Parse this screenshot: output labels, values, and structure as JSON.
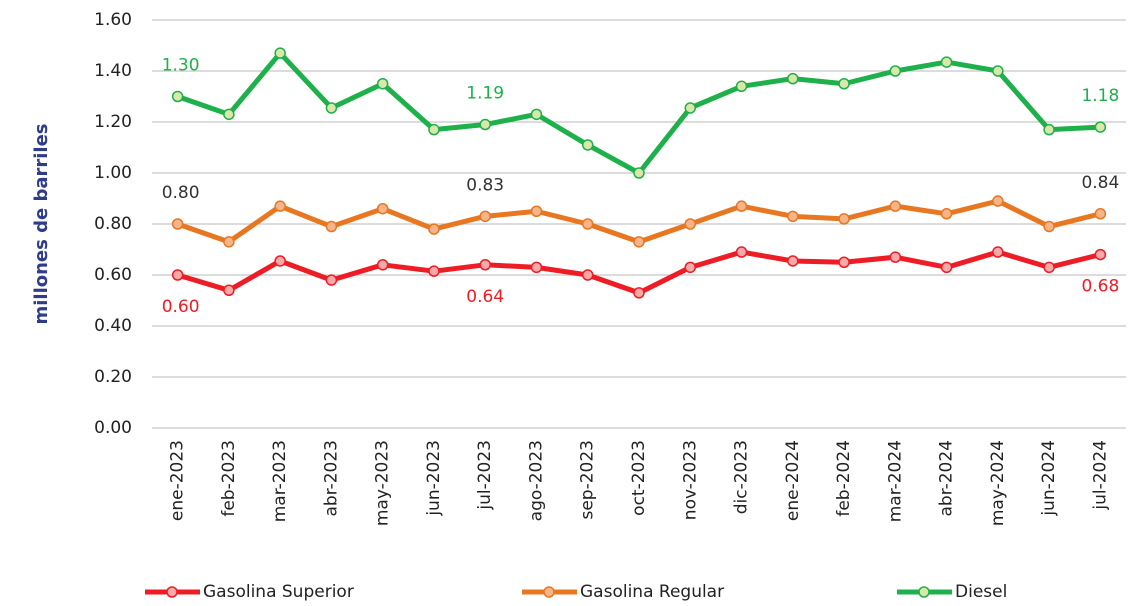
{
  "chart_data": {
    "type": "line",
    "y_label": "millones de barriles",
    "categories": [
      "ene-2023",
      "feb-2023",
      "mar-2023",
      "abr-2023",
      "may-2023",
      "jun-2023",
      "jul-2023",
      "ago-2023",
      "sep-2023",
      "oct-2023",
      "nov-2023",
      "dic-2023",
      "ene-2024",
      "feb-2024",
      "mar-2024",
      "abr-2024",
      "may-2024",
      "jun-2024",
      "jul-2024"
    ],
    "series": [
      {
        "name": "Gasolina Superior",
        "color": "#ee1c25",
        "marker_color": "#f7a8a8",
        "label_color": "#ee1c25",
        "values": [
          0.6,
          0.54,
          0.655,
          0.58,
          0.64,
          0.615,
          0.64,
          0.63,
          0.6,
          0.53,
          0.63,
          0.69,
          0.655,
          0.65,
          0.67,
          0.63,
          0.69,
          0.63,
          0.68
        ],
        "value_labels": [
          "0.60",
          null,
          null,
          null,
          null,
          null,
          "0.64",
          null,
          null,
          null,
          null,
          null,
          null,
          null,
          null,
          null,
          null,
          null,
          "0.68"
        ]
      },
      {
        "name": "Gasolina Regular",
        "color": "#e87722",
        "marker_color": "#f6b48a",
        "label_color": "#333333",
        "values": [
          0.8,
          0.73,
          0.87,
          0.79,
          0.86,
          0.78,
          0.83,
          0.85,
          0.8,
          0.73,
          0.8,
          0.87,
          0.83,
          0.82,
          0.87,
          0.84,
          0.89,
          0.79,
          0.84
        ],
        "value_labels": [
          "0.80",
          null,
          null,
          null,
          null,
          null,
          "0.83",
          null,
          null,
          null,
          null,
          null,
          null,
          null,
          null,
          null,
          null,
          null,
          "0.84"
        ]
      },
      {
        "name": "Diesel",
        "color": "#1db04b",
        "marker_color": "#d9e8a8",
        "label_color": "#1db04b",
        "values": [
          1.3,
          1.23,
          1.47,
          1.255,
          1.35,
          1.17,
          1.19,
          1.23,
          1.11,
          1.0,
          1.255,
          1.34,
          1.37,
          1.35,
          1.4,
          1.435,
          1.4,
          1.17,
          1.18
        ],
        "value_labels": [
          "1.30",
          null,
          null,
          null,
          null,
          null,
          "1.19",
          null,
          null,
          null,
          null,
          null,
          null,
          null,
          null,
          null,
          null,
          null,
          "1.18"
        ]
      }
    ],
    "ylim": [
      0,
      1.6
    ],
    "yticks": [
      {
        "value": 0,
        "label": "0.00"
      },
      {
        "value": 0.2,
        "label": "0.20"
      },
      {
        "value": 0.4,
        "label": "0.40"
      },
      {
        "value": 0.6,
        "label": "0.60"
      },
      {
        "value": 0.8,
        "label": "0.80"
      },
      {
        "value": 1.0,
        "label": "1.00"
      },
      {
        "value": 1.2,
        "label": "1.20"
      },
      {
        "value": 1.4,
        "label": "1.40"
      },
      {
        "value": 1.6,
        "label": "1.60"
      }
    ],
    "grid": true,
    "legend": "bottom"
  }
}
